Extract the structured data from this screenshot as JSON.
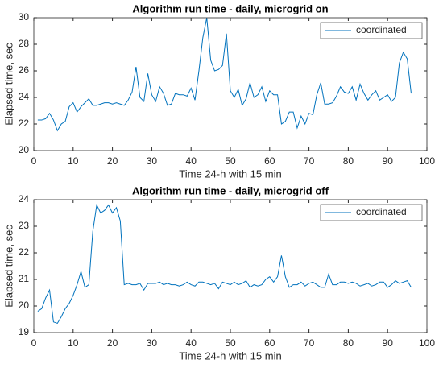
{
  "chart_data": [
    {
      "type": "line",
      "title": "Algorithm run time - daily, microgrid on",
      "x_label": "Time 24-h with 15 min",
      "y_label": "Elapsed time, sec",
      "x": [
        1,
        2,
        3,
        4,
        5,
        6,
        7,
        8,
        9,
        10,
        11,
        12,
        13,
        14,
        15,
        16,
        17,
        18,
        19,
        20,
        21,
        22,
        23,
        24,
        25,
        26,
        27,
        28,
        29,
        30,
        31,
        32,
        33,
        34,
        35,
        36,
        37,
        38,
        39,
        40,
        41,
        42,
        43,
        44,
        45,
        46,
        47,
        48,
        49,
        50,
        51,
        52,
        53,
        54,
        55,
        56,
        57,
        58,
        59,
        60,
        61,
        62,
        63,
        64,
        65,
        66,
        67,
        68,
        69,
        70,
        71,
        72,
        73,
        74,
        75,
        76,
        77,
        78,
        79,
        80,
        81,
        82,
        83,
        84,
        85,
        86,
        87,
        88,
        89,
        90,
        91,
        92,
        93,
        94,
        95,
        96
      ],
      "series": [
        {
          "name": "coordinated",
          "color": "#0072bd",
          "values": [
            22.3,
            22.3,
            22.4,
            22.8,
            22.3,
            21.5,
            22.0,
            22.2,
            23.3,
            23.6,
            22.9,
            23.3,
            23.6,
            23.9,
            23.4,
            23.4,
            23.5,
            23.6,
            23.6,
            23.5,
            23.6,
            23.5,
            23.4,
            23.8,
            24.4,
            26.3,
            24.0,
            23.7,
            25.8,
            24.2,
            23.7,
            24.8,
            24.3,
            23.4,
            23.5,
            24.3,
            24.2,
            24.2,
            24.1,
            24.7,
            23.8,
            26.0,
            28.5,
            30.0,
            26.8,
            26.0,
            26.1,
            26.4,
            28.8,
            24.5,
            24.0,
            24.6,
            23.4,
            23.9,
            25.1,
            24.0,
            24.2,
            24.8,
            23.7,
            24.5,
            24.2,
            24.2,
            22.0,
            22.2,
            22.9,
            22.9,
            21.7,
            22.6,
            22.0,
            22.8,
            22.7,
            24.2,
            25.1,
            23.5,
            23.5,
            23.6,
            24.1,
            24.8,
            24.4,
            24.3,
            24.8,
            23.8,
            25.0,
            24.3,
            23.8,
            24.2,
            24.5,
            23.8,
            24.0,
            24.2,
            23.7,
            24.0,
            26.6,
            27.4,
            26.9,
            24.3
          ]
        }
      ],
      "xlim": [
        0,
        100
      ],
      "xticks": [
        0,
        10,
        20,
        30,
        40,
        50,
        60,
        70,
        80,
        90,
        100
      ],
      "ylim": [
        20,
        30
      ],
      "yticks": [
        20,
        22,
        24,
        26,
        28,
        30
      ],
      "legend": "upper right"
    },
    {
      "type": "line",
      "title": "Algorithm run time - daily, microgrid off",
      "x_label": "Time 24-h with 15 min",
      "y_label": "Elapsed time, sec",
      "x": [
        1,
        2,
        3,
        4,
        5,
        6,
        7,
        8,
        9,
        10,
        11,
        12,
        13,
        14,
        15,
        16,
        17,
        18,
        19,
        20,
        21,
        22,
        23,
        24,
        25,
        26,
        27,
        28,
        29,
        30,
        31,
        32,
        33,
        34,
        35,
        36,
        37,
        38,
        39,
        40,
        41,
        42,
        43,
        44,
        45,
        46,
        47,
        48,
        49,
        50,
        51,
        52,
        53,
        54,
        55,
        56,
        57,
        58,
        59,
        60,
        61,
        62,
        63,
        64,
        65,
        66,
        67,
        68,
        69,
        70,
        71,
        72,
        73,
        74,
        75,
        76,
        77,
        78,
        79,
        80,
        81,
        82,
        83,
        84,
        85,
        86,
        87,
        88,
        89,
        90,
        91,
        92,
        93,
        94,
        95,
        96
      ],
      "series": [
        {
          "name": "coordinated",
          "color": "#0072bd",
          "values": [
            19.8,
            19.9,
            20.3,
            20.6,
            19.4,
            19.35,
            19.6,
            19.9,
            20.1,
            20.4,
            20.8,
            21.3,
            20.7,
            20.8,
            22.8,
            23.8,
            23.5,
            23.6,
            23.8,
            23.5,
            23.7,
            23.2,
            20.8,
            20.85,
            20.8,
            20.8,
            20.85,
            20.6,
            20.85,
            20.85,
            20.85,
            20.9,
            20.8,
            20.85,
            20.8,
            20.8,
            20.75,
            20.8,
            20.9,
            20.8,
            20.75,
            20.9,
            20.9,
            20.85,
            20.8,
            20.85,
            20.65,
            20.9,
            20.85,
            20.8,
            20.9,
            20.8,
            20.85,
            20.95,
            20.7,
            20.8,
            20.75,
            20.8,
            21.0,
            21.1,
            20.9,
            21.1,
            21.9,
            21.1,
            20.7,
            20.8,
            20.8,
            20.9,
            20.75,
            20.85,
            20.9,
            20.8,
            20.7,
            20.7,
            21.2,
            20.8,
            20.8,
            20.9,
            20.9,
            20.85,
            20.9,
            20.85,
            20.75,
            20.8,
            20.85,
            20.75,
            20.8,
            20.9,
            20.9,
            20.7,
            20.8,
            20.95,
            20.85,
            20.9,
            20.95,
            20.7
          ]
        }
      ],
      "xlim": [
        0,
        100
      ],
      "xticks": [
        0,
        10,
        20,
        30,
        40,
        50,
        60,
        70,
        80,
        90,
        100
      ],
      "ylim": [
        19,
        24
      ],
      "yticks": [
        19,
        20,
        21,
        22,
        23,
        24
      ],
      "legend": "upper right"
    }
  ]
}
